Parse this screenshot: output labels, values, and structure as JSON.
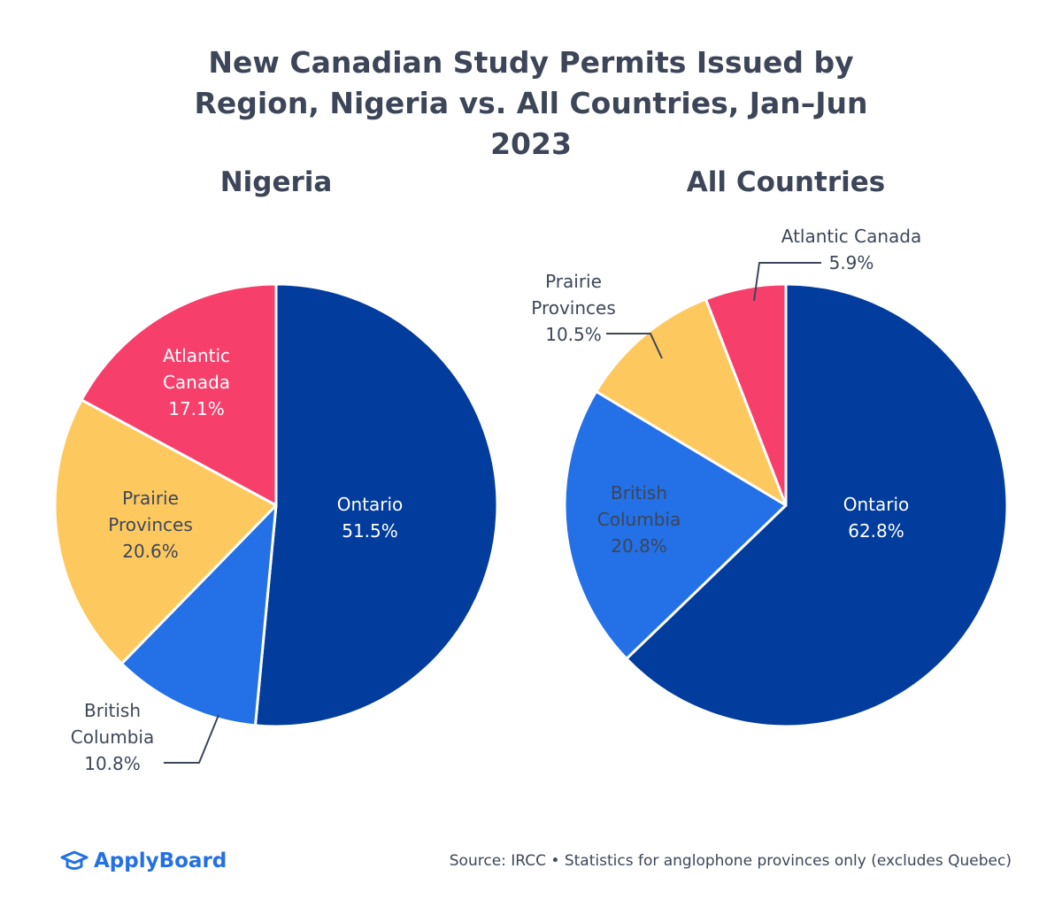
{
  "title": "New Canadian Study Permits Issued by Region, Nigeria vs. All Countries, Jan–Jun 2023",
  "chart_data": [
    {
      "type": "pie",
      "title": "Nigeria",
      "categories": [
        "Ontario",
        "British Columbia",
        "Prairie Provinces",
        "Atlantic Canada"
      ],
      "values": [
        51.5,
        10.8,
        20.6,
        17.1
      ],
      "value_labels": [
        "51.5%",
        "10.8%",
        "20.6%",
        "17.1%"
      ],
      "colors": [
        "#023c9c",
        "#2470e6",
        "#fdc95f",
        "#f73f6c"
      ]
    },
    {
      "type": "pie",
      "title": "All Countries",
      "categories": [
        "Ontario",
        "British Columbia",
        "Prairie Provinces",
        "Atlantic Canada"
      ],
      "values": [
        62.8,
        20.8,
        10.5,
        5.9
      ],
      "value_labels": [
        "62.8%",
        "20.8%",
        "10.5%",
        "5.9%"
      ],
      "colors": [
        "#023c9c",
        "#2470e6",
        "#fdc95f",
        "#f73f6c"
      ]
    }
  ],
  "footer": {
    "brand": "ApplyBoard",
    "source": "Source: IRCC • Statistics for anglophone provinces only (excludes Quebec)"
  }
}
